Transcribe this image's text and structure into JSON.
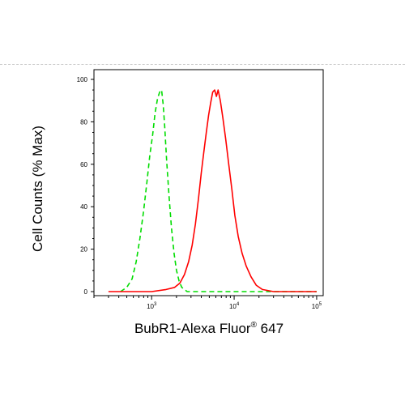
{
  "chart_data": {
    "type": "line",
    "title": "",
    "xlabel_main": "BubR1-Alexa Fluor",
    "xlabel_sup": "®",
    "xlabel_tail": " 647",
    "ylabel": "Cell Counts (% Max)",
    "x_scale": "log",
    "xlim": [
      200,
      120000
    ],
    "ylim": [
      0,
      100
    ],
    "x_ticks": [
      {
        "base": "10",
        "exp": "3",
        "value": 1000
      },
      {
        "base": "10",
        "exp": "4",
        "value": 10000
      },
      {
        "base": "10",
        "exp": "5",
        "value": 100000
      }
    ],
    "y_ticks": [
      "0",
      "20",
      "40",
      "60",
      "80",
      "100"
    ],
    "y_tick_values": [
      0,
      20,
      40,
      60,
      80,
      100
    ],
    "grid": false,
    "legend": "none",
    "series": [
      {
        "color": "#00dd00",
        "style": "dashed",
        "x": [
          420,
          500,
          580,
          650,
          720,
          800,
          880,
          950,
          1030,
          1100,
          1180,
          1250,
          1320,
          1380,
          1440,
          1520,
          1620,
          1740,
          1870,
          2000,
          2150,
          2320,
          2500,
          2700,
          3000,
          3500,
          5000,
          10000,
          30000,
          100000
        ],
        "y": [
          0,
          2,
          6,
          14,
          25,
          38,
          52,
          64,
          74,
          84,
          91,
          94,
          95,
          88,
          78,
          62,
          46,
          30,
          18,
          10,
          5,
          2,
          1,
          0,
          0,
          0,
          0,
          0,
          0,
          0
        ]
      },
      {
        "color": "#ff0000",
        "style": "solid",
        "x": [
          300,
          1000,
          1500,
          1900,
          2200,
          2500,
          2800,
          3100,
          3400,
          3700,
          4000,
          4300,
          4600,
          4900,
          5200,
          5500,
          5800,
          6100,
          6400,
          6800,
          7300,
          7900,
          8600,
          9400,
          10200,
          11200,
          12500,
          14000,
          16000,
          18500,
          22000,
          30000,
          60000,
          100000
        ],
        "y": [
          0,
          0,
          1,
          2,
          4,
          8,
          14,
          22,
          32,
          44,
          56,
          66,
          75,
          83,
          89,
          94,
          95,
          92,
          95,
          90,
          82,
          72,
          60,
          48,
          36,
          26,
          18,
          12,
          7,
          3,
          1,
          0,
          0,
          0
        ]
      }
    ]
  }
}
